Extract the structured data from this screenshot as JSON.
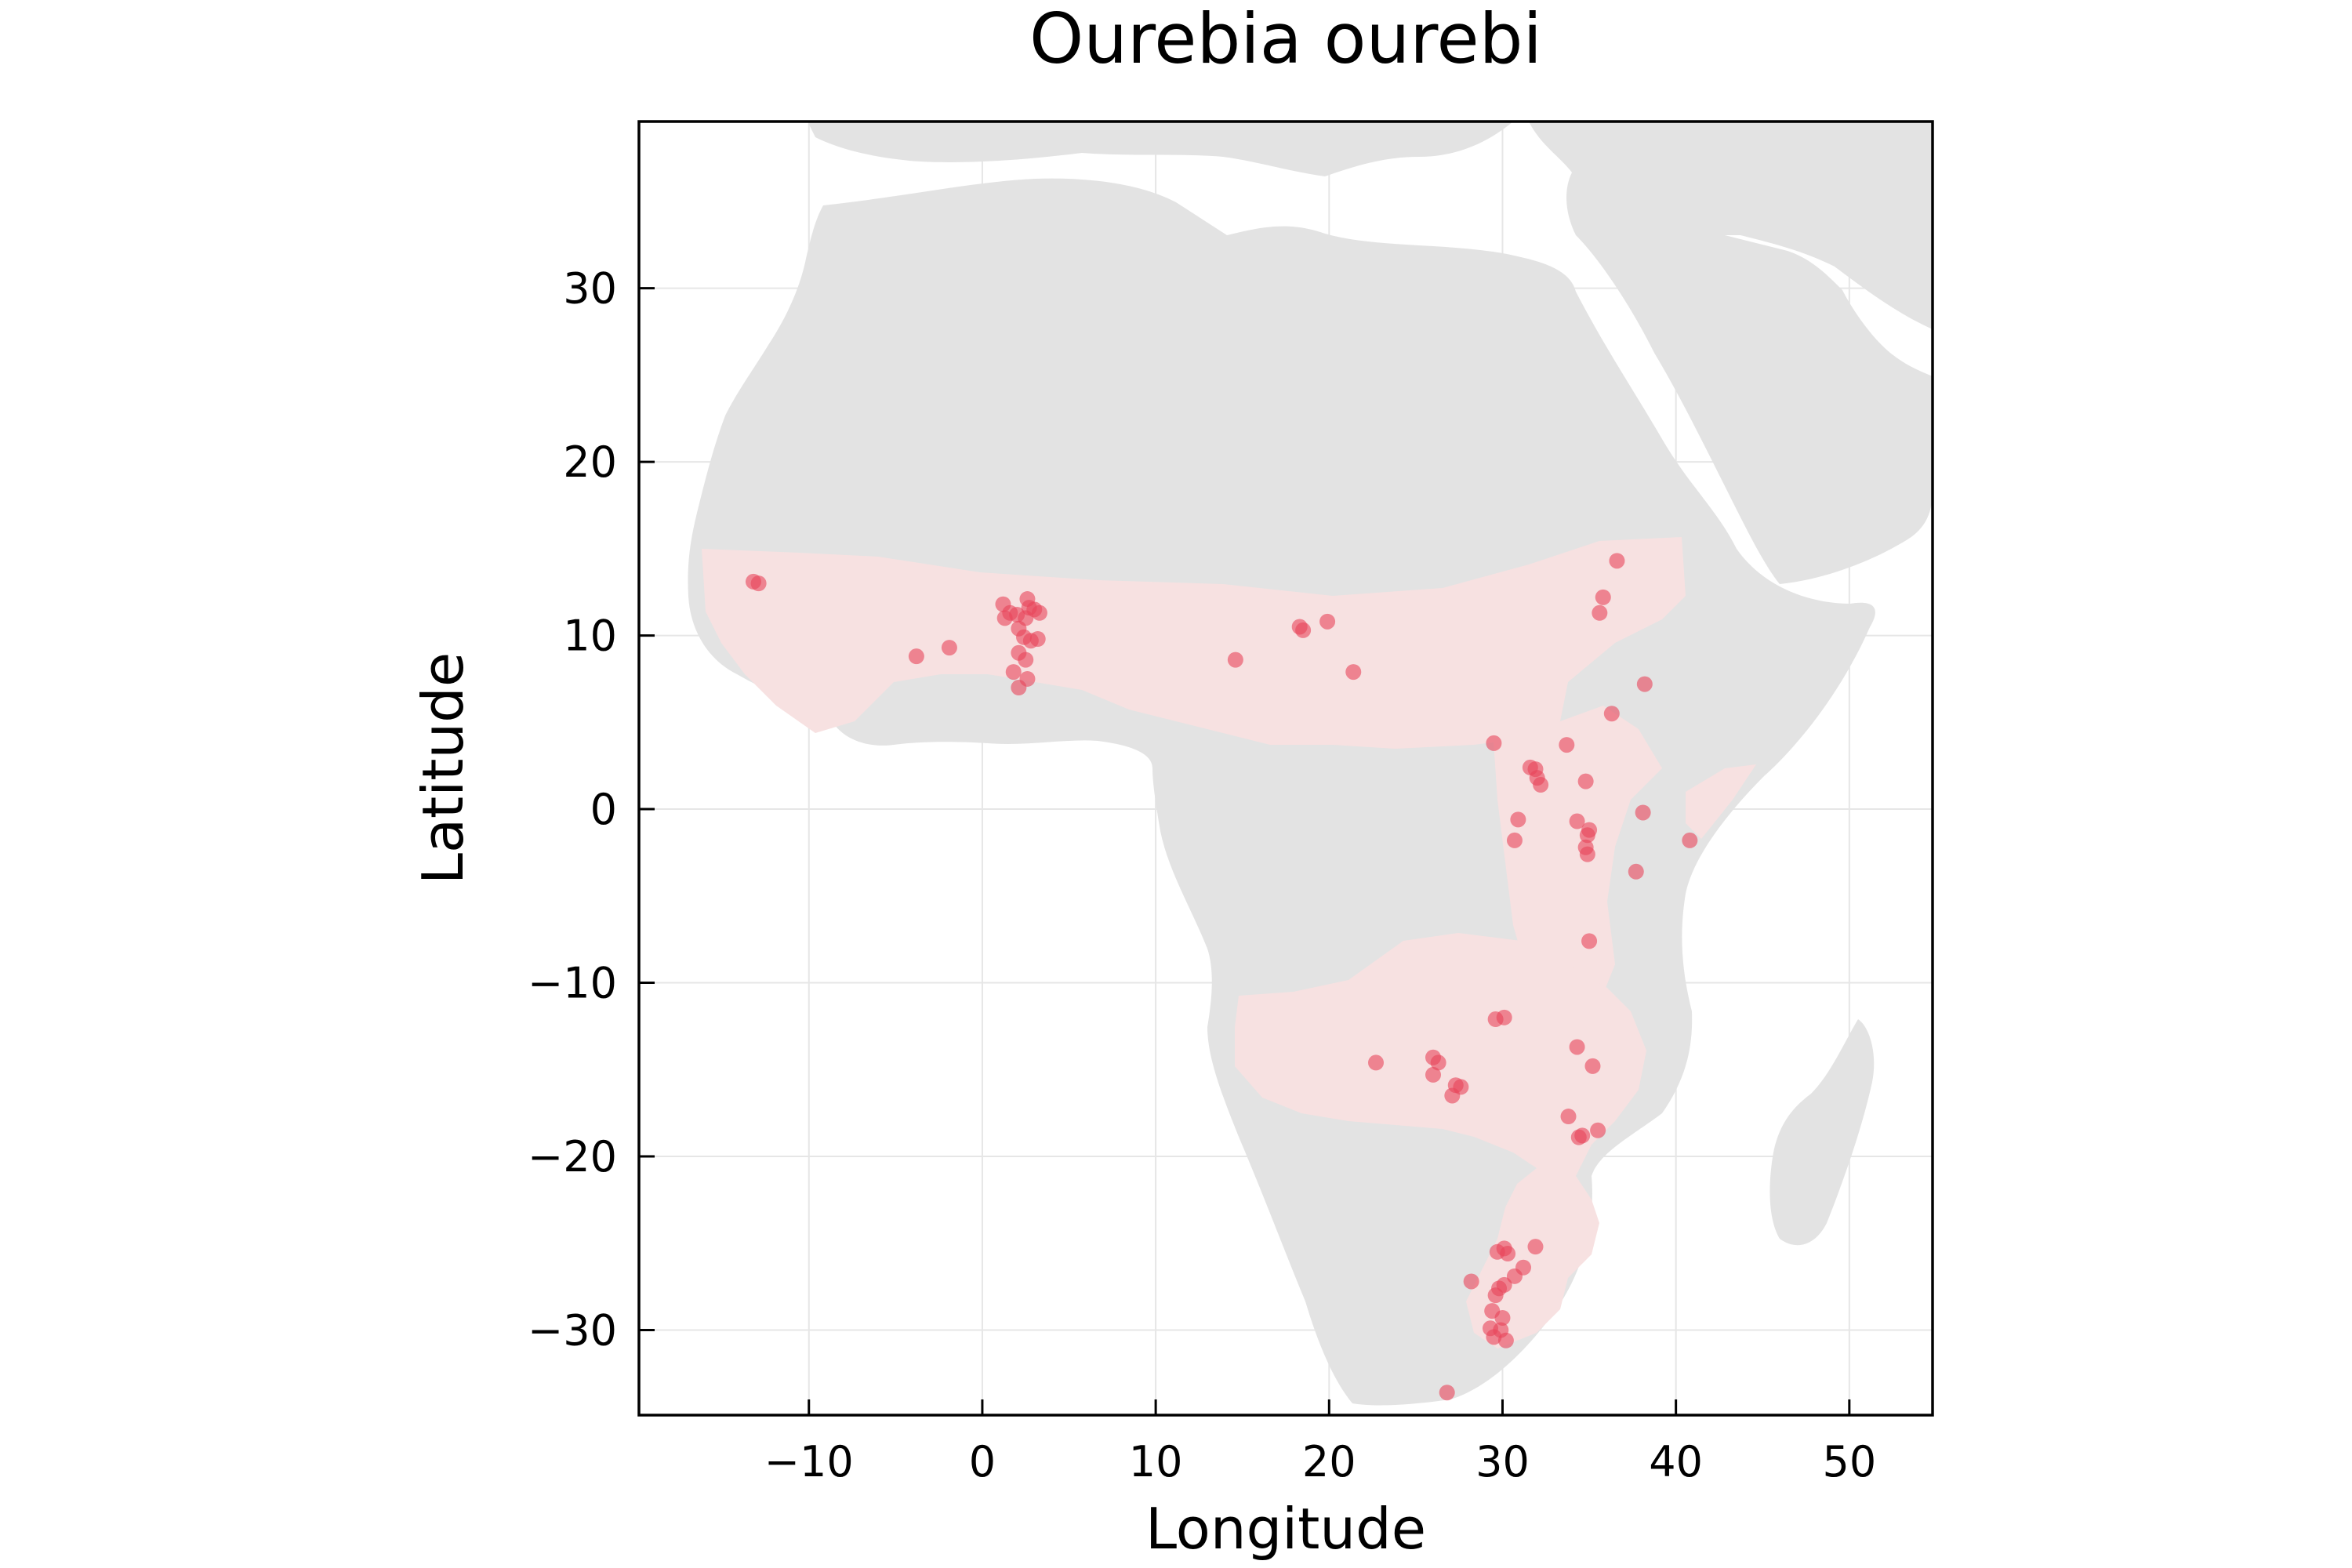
{
  "chart_data": {
    "type": "scatter",
    "title": "Ourebia ourebi",
    "xlabel": "Longitude",
    "ylabel": "Latitude",
    "xlim": [
      -19.8,
      54.8
    ],
    "ylim": [
      -34.9,
      39.6
    ],
    "xticks": [
      -10,
      0,
      10,
      20,
      30,
      40,
      50
    ],
    "yticks": [
      -30,
      -20,
      -10,
      0,
      10,
      20,
      30
    ],
    "xtick_labels": [
      "−10",
      "0",
      "10",
      "20",
      "30",
      "40",
      "50"
    ],
    "ytick_labels": [
      "−30",
      "−20",
      "−10",
      "0",
      "10",
      "20",
      "30"
    ],
    "grid": true,
    "legend": "none",
    "colors": {
      "land": "#e3e3e3",
      "range": "#f7e1e1",
      "point": "#e8445a",
      "grid": "#e6e6e6",
      "frame": "#000000"
    },
    "series": [
      {
        "points": [
          [
            -13.2,
            13.1
          ],
          [
            -12.9,
            13.0
          ],
          [
            -3.8,
            8.8
          ],
          [
            -1.9,
            9.3
          ],
          [
            1.2,
            11.8
          ],
          [
            1.3,
            11.0
          ],
          [
            1.6,
            11.3
          ],
          [
            2.0,
            11.2
          ],
          [
            2.6,
            12.1
          ],
          [
            2.7,
            11.6
          ],
          [
            2.5,
            11.0
          ],
          [
            3.0,
            11.5
          ],
          [
            3.3,
            11.3
          ],
          [
            2.1,
            10.4
          ],
          [
            2.4,
            9.9
          ],
          [
            2.8,
            9.7
          ],
          [
            3.2,
            9.8
          ],
          [
            2.1,
            9.0
          ],
          [
            2.5,
            8.6
          ],
          [
            1.8,
            7.9
          ],
          [
            2.6,
            7.5
          ],
          [
            2.1,
            7.0
          ],
          [
            14.6,
            8.6
          ],
          [
            18.3,
            10.5
          ],
          [
            18.5,
            10.3
          ],
          [
            19.9,
            10.8
          ],
          [
            21.4,
            7.9
          ],
          [
            29.5,
            3.8
          ],
          [
            31.6,
            2.4
          ],
          [
            31.9,
            2.3
          ],
          [
            32.0,
            1.8
          ],
          [
            32.2,
            1.4
          ],
          [
            33.7,
            3.7
          ],
          [
            34.8,
            1.6
          ],
          [
            30.9,
            -0.6
          ],
          [
            30.7,
            -1.8
          ],
          [
            34.3,
            -0.7
          ],
          [
            34.9,
            -1.5
          ],
          [
            35.0,
            -1.2
          ],
          [
            34.8,
            -2.2
          ],
          [
            34.9,
            -2.6
          ],
          [
            35.6,
            11.3
          ],
          [
            35.8,
            12.2
          ],
          [
            36.6,
            14.3
          ],
          [
            36.3,
            5.5
          ],
          [
            38.2,
            7.2
          ],
          [
            38.1,
            -0.2
          ],
          [
            40.8,
            -1.8
          ],
          [
            37.7,
            -3.6
          ],
          [
            35.0,
            -7.6
          ],
          [
            29.6,
            -12.1
          ],
          [
            30.1,
            -12.0
          ],
          [
            22.7,
            -14.6
          ],
          [
            26.0,
            -14.3
          ],
          [
            26.3,
            -14.6
          ],
          [
            26.0,
            -15.3
          ],
          [
            27.3,
            -15.9
          ],
          [
            27.6,
            -16.0
          ],
          [
            27.1,
            -16.5
          ],
          [
            34.3,
            -13.7
          ],
          [
            35.2,
            -14.8
          ],
          [
            33.8,
            -17.7
          ],
          [
            34.6,
            -18.8
          ],
          [
            34.4,
            -18.9
          ],
          [
            35.5,
            -18.5
          ],
          [
            29.7,
            -25.5
          ],
          [
            30.1,
            -25.3
          ],
          [
            30.3,
            -25.6
          ],
          [
            31.9,
            -25.2
          ],
          [
            28.2,
            -27.2
          ],
          [
            29.8,
            -27.6
          ],
          [
            30.1,
            -27.4
          ],
          [
            30.7,
            -26.9
          ],
          [
            31.2,
            -26.4
          ],
          [
            29.6,
            -28.0
          ],
          [
            29.4,
            -28.9
          ],
          [
            30.0,
            -29.3
          ],
          [
            29.3,
            -29.9
          ],
          [
            29.9,
            -30.0
          ],
          [
            29.5,
            -30.4
          ],
          [
            30.2,
            -30.6
          ],
          [
            26.8,
            -33.6
          ]
        ]
      }
    ]
  }
}
